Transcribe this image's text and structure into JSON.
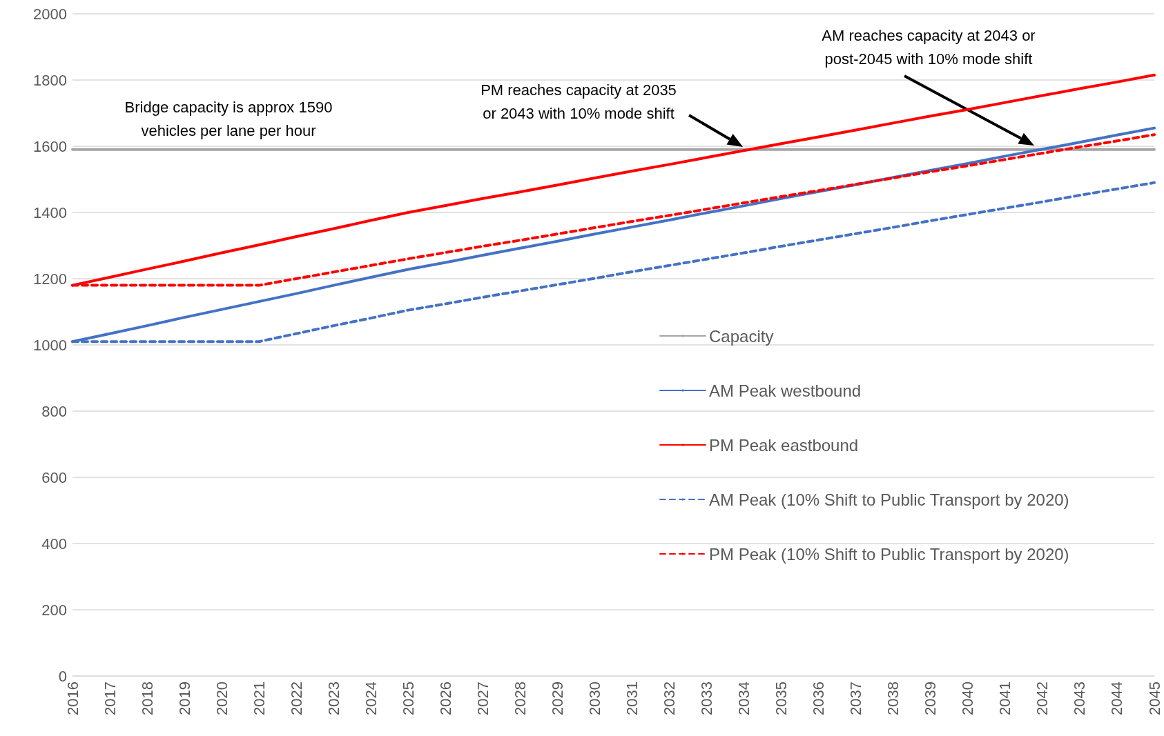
{
  "chart_data": {
    "type": "line",
    "categories": [
      "2016",
      "2017",
      "2018",
      "2019",
      "2020",
      "2021",
      "2022",
      "2023",
      "2024",
      "2025",
      "2026",
      "2027",
      "2028",
      "2029",
      "2030",
      "2031",
      "2032",
      "2033",
      "2034",
      "2035",
      "2036",
      "2037",
      "2038",
      "2039",
      "2040",
      "2041",
      "2042",
      "2043",
      "2044",
      "2045"
    ],
    "series": [
      {
        "name": "Capacity",
        "color": "#a5a5a5",
        "line_style": "solid",
        "values": [
          1590,
          1590,
          1590,
          1590,
          1590,
          1590,
          1590,
          1590,
          1590,
          1590,
          1590,
          1590,
          1590,
          1590,
          1590,
          1590,
          1590,
          1590,
          1590,
          1590,
          1590,
          1590,
          1590,
          1590,
          1590,
          1590,
          1590,
          1590,
          1590,
          1590
        ]
      },
      {
        "name": "AM Peak westbound",
        "color": "#4472c4",
        "line_style": "solid",
        "values": [
          1010,
          1034,
          1058,
          1083,
          1107,
          1131,
          1155,
          1180,
          1204,
          1228,
          1249,
          1271,
          1292,
          1313,
          1335,
          1356,
          1377,
          1399,
          1420,
          1442,
          1463,
          1484,
          1506,
          1527,
          1548,
          1570,
          1591,
          1612,
          1634,
          1655
        ]
      },
      {
        "name": "PM Peak eastbound",
        "color": "#ff0000",
        "line_style": "solid",
        "values": [
          1180,
          1204,
          1229,
          1253,
          1278,
          1302,
          1327,
          1351,
          1376,
          1400,
          1421,
          1442,
          1462,
          1483,
          1504,
          1525,
          1545,
          1566,
          1587,
          1608,
          1628,
          1649,
          1670,
          1691,
          1711,
          1732,
          1753,
          1774,
          1794,
          1815
        ]
      },
      {
        "name": "AM Peak (10% Shift to Public Transport by 2020)",
        "color": "#4472c4",
        "line_style": "dashed",
        "values": [
          1010,
          1010,
          1010,
          1010,
          1010,
          1010,
          1034,
          1058,
          1081,
          1105,
          1124,
          1144,
          1163,
          1182,
          1201,
          1221,
          1240,
          1259,
          1278,
          1298,
          1317,
          1336,
          1355,
          1375,
          1394,
          1413,
          1432,
          1452,
          1471,
          1490
        ]
      },
      {
        "name": "PM Peak (10% Shift to Public Transport by 2020)",
        "color": "#ff0000",
        "line_style": "dashed",
        "values": [
          1180,
          1180,
          1180,
          1180,
          1180,
          1180,
          1200,
          1220,
          1240,
          1260,
          1279,
          1298,
          1316,
          1335,
          1354,
          1373,
          1391,
          1410,
          1429,
          1448,
          1466,
          1485,
          1504,
          1523,
          1541,
          1560,
          1579,
          1598,
          1616,
          1635
        ]
      }
    ],
    "ylim": [
      0,
      2000
    ],
    "yticks": [
      0,
      200,
      400,
      600,
      800,
      1000,
      1200,
      1400,
      1600,
      1800,
      2000
    ],
    "grid": "y",
    "legend": "right",
    "marker": "none",
    "annotations": [
      "Bridge capacity is approx 1590\nvehicles per lane per hour",
      "PM reaches capacity at 2035\nor 2043 with 10% mode shift",
      "AM reaches capacity at 2043 or\npost-2045 with 10% mode shift"
    ]
  }
}
